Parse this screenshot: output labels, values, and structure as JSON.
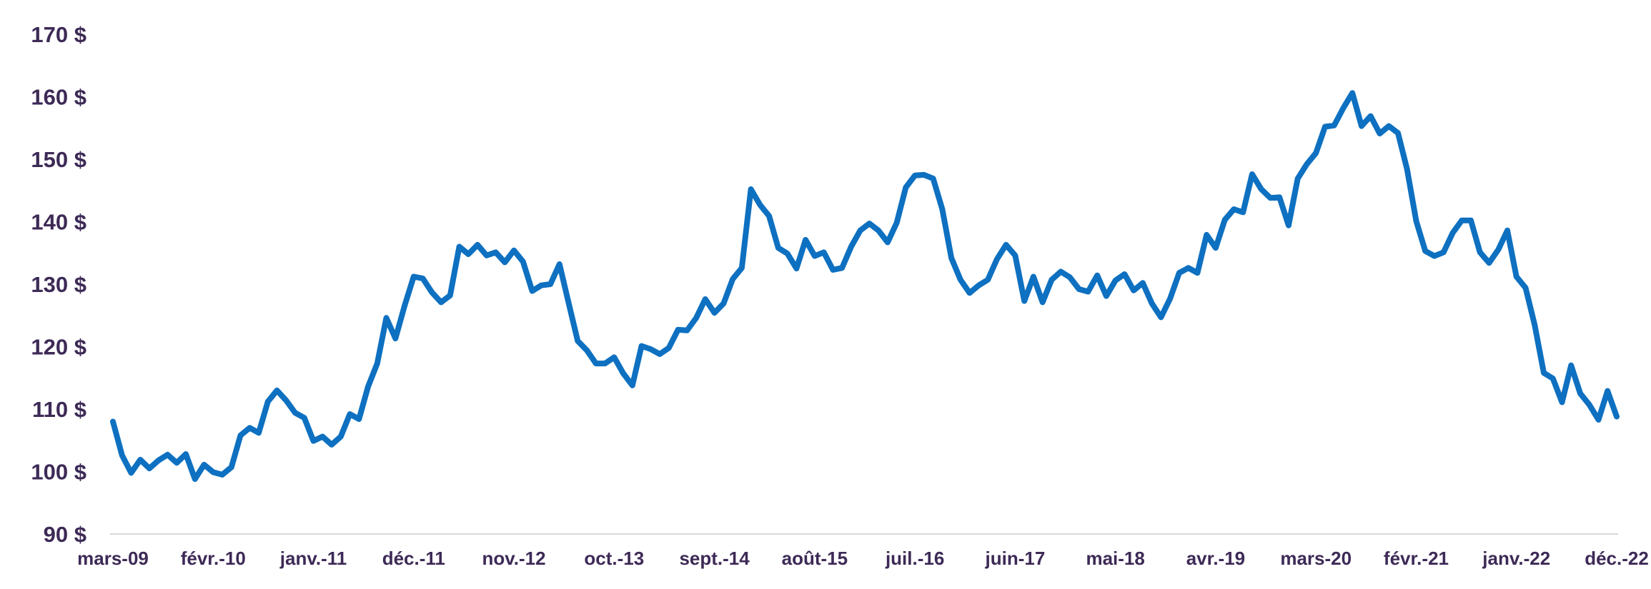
{
  "chart_data": {
    "type": "line",
    "title": "",
    "xlabel": "",
    "ylabel": "",
    "ylim": [
      90,
      170
    ],
    "yticks": [
      "90 $",
      "100 $",
      "110 $",
      "120 $",
      "130 $",
      "140 $",
      "150 $",
      "160 $",
      "170 $"
    ],
    "ytick_values": [
      90,
      100,
      110,
      120,
      130,
      140,
      150,
      160,
      170
    ],
    "x_tick_labels": [
      "mars-09",
      "févr.-10",
      "janv.-11",
      "déc.-11",
      "nov.-12",
      "oct.-13",
      "sept.-14",
      "août-15",
      "juil.-16",
      "juin-17",
      "mai-18",
      "avr.-19",
      "mars-20",
      "févr.-21",
      "janv.-22",
      "déc.-22"
    ],
    "x_tick_month_index": [
      0,
      11,
      22,
      33,
      44,
      55,
      66,
      77,
      88,
      99,
      110,
      121,
      132,
      143,
      154,
      165
    ],
    "x_start": "mars-09",
    "x_end": "déc.-22",
    "grid": false,
    "legend": "none",
    "colors": {
      "line": "#0e70c0",
      "axis_text": "#3d2a56",
      "baseline": "#d9d9d9"
    },
    "series": [
      {
        "values": [
          108,
          102.6,
          99.8,
          101.9,
          100.5,
          101.8,
          102.7,
          101.4,
          102.8,
          98.8,
          101.1,
          99.9,
          99.5,
          100.7,
          105.8,
          107,
          106.2,
          111.2,
          113,
          111.4,
          109.4,
          108.6,
          104.9,
          105.6,
          104.3,
          105.6,
          109.2,
          108.4,
          113.6,
          117.3,
          124.6,
          121.3,
          126.5,
          131.2,
          130.9,
          128.7,
          127.1,
          128.2,
          136,
          134.8,
          136.3,
          134.6,
          135.1,
          133.5,
          135.4,
          133.6,
          128.9,
          129.8,
          130,
          133.2,
          127,
          120.9,
          119.4,
          117.3,
          117.3,
          118.3,
          115.7,
          113.8,
          120.1,
          119.6,
          118.8,
          119.8,
          122.7,
          122.6,
          124.6,
          127.6,
          125.4,
          126.9,
          130.8,
          132.6,
          145.2,
          142.7,
          140.9,
          135.8,
          134.9,
          132.5,
          137.1,
          134.5,
          135.1,
          132.3,
          132.6,
          136,
          138.6,
          139.7,
          138.6,
          136.7,
          139.8,
          145.5,
          147.4,
          147.5,
          146.9,
          142,
          134.2,
          130.7,
          128.6,
          129.8,
          130.7,
          134,
          136.3,
          134.6,
          127.3,
          131.2,
          127.1,
          130.7,
          132,
          131.1,
          129.2,
          128.8,
          131.4,
          128.1,
          130.6,
          131.6,
          129,
          130.2,
          126.9,
          124.7,
          127.7,
          131.8,
          132.6,
          131.8,
          137.9,
          135.8,
          140.3,
          142,
          141.5,
          147.6,
          145.2,
          143.8,
          143.9,
          139.4,
          146.9,
          149.2,
          151,
          155.2,
          155.4,
          158.2,
          160.6,
          155.3,
          156.9,
          154.1,
          155.3,
          154.2,
          148.4,
          140.1,
          135.3,
          134.5,
          135.1,
          138.2,
          140.2,
          140.2,
          135.1,
          133.4,
          135.5,
          138.6,
          131.2,
          129.4,
          123.5,
          115.8,
          114.9,
          111.1,
          117,
          112.5,
          110.7,
          108.3,
          112.9,
          108.8
        ]
      }
    ]
  }
}
